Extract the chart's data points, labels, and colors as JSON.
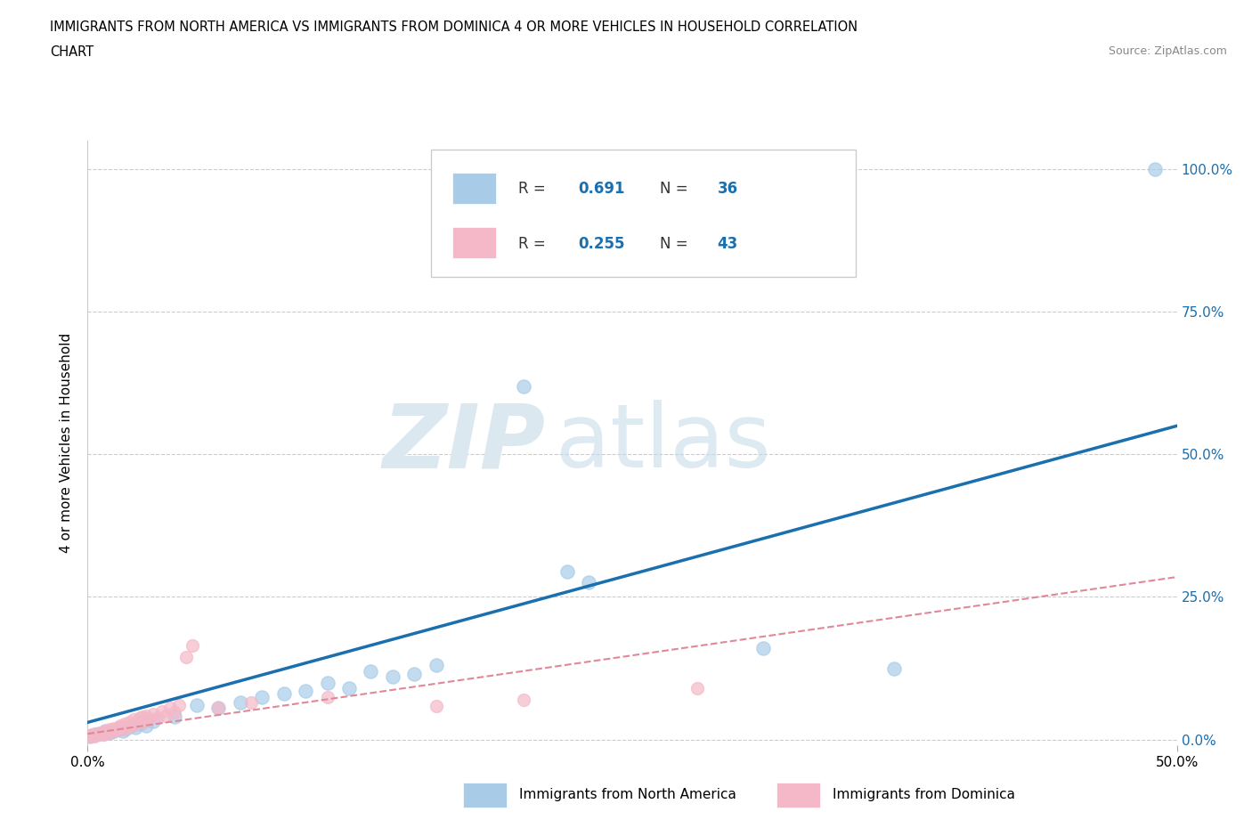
{
  "title_line1": "IMMIGRANTS FROM NORTH AMERICA VS IMMIGRANTS FROM DOMINICA 4 OR MORE VEHICLES IN HOUSEHOLD CORRELATION",
  "title_line2": "CHART",
  "source": "Source: ZipAtlas.com",
  "ylabel": "4 or more Vehicles in Household",
  "xlim": [
    0.0,
    0.5
  ],
  "ylim": [
    -0.01,
    1.05
  ],
  "yticks": [
    0.0,
    0.25,
    0.5,
    0.75,
    1.0
  ],
  "ytick_labels": [
    "0.0%",
    "25.0%",
    "50.0%",
    "75.0%",
    "100.0%"
  ],
  "xticks": [
    0.0,
    0.5
  ],
  "xtick_labels": [
    "0.0%",
    "50.0%"
  ],
  "watermark_zip": "ZIP",
  "watermark_atlas": "atlas",
  "blue_R": 0.691,
  "blue_N": 36,
  "pink_R": 0.255,
  "pink_N": 43,
  "blue_color": "#a8cce8",
  "pink_color": "#f4b8c8",
  "blue_line_color": "#1a6faf",
  "pink_line_color": "#e08898",
  "legend_text_color": "#1a6faf",
  "blue_scatter": [
    [
      0.001,
      0.005
    ],
    [
      0.003,
      0.008
    ],
    [
      0.005,
      0.01
    ],
    [
      0.007,
      0.01
    ],
    [
      0.008,
      0.015
    ],
    [
      0.01,
      0.012
    ],
    [
      0.012,
      0.015
    ],
    [
      0.014,
      0.018
    ],
    [
      0.015,
      0.02
    ],
    [
      0.016,
      0.015
    ],
    [
      0.018,
      0.02
    ],
    [
      0.02,
      0.025
    ],
    [
      0.022,
      0.022
    ],
    [
      0.024,
      0.028
    ],
    [
      0.025,
      0.03
    ],
    [
      0.027,
      0.025
    ],
    [
      0.03,
      0.032
    ],
    [
      0.04,
      0.04
    ],
    [
      0.05,
      0.06
    ],
    [
      0.06,
      0.055
    ],
    [
      0.07,
      0.065
    ],
    [
      0.08,
      0.075
    ],
    [
      0.09,
      0.08
    ],
    [
      0.1,
      0.085
    ],
    [
      0.11,
      0.1
    ],
    [
      0.12,
      0.09
    ],
    [
      0.13,
      0.12
    ],
    [
      0.14,
      0.11
    ],
    [
      0.15,
      0.115
    ],
    [
      0.16,
      0.13
    ],
    [
      0.2,
      0.62
    ],
    [
      0.22,
      0.295
    ],
    [
      0.23,
      0.275
    ],
    [
      0.31,
      0.16
    ],
    [
      0.37,
      0.125
    ],
    [
      0.49,
      1.0
    ]
  ],
  "pink_scatter": [
    [
      0.001,
      0.005
    ],
    [
      0.002,
      0.008
    ],
    [
      0.003,
      0.006
    ],
    [
      0.004,
      0.01
    ],
    [
      0.005,
      0.008
    ],
    [
      0.006,
      0.012
    ],
    [
      0.007,
      0.009
    ],
    [
      0.008,
      0.015
    ],
    [
      0.009,
      0.011
    ],
    [
      0.01,
      0.018
    ],
    [
      0.011,
      0.014
    ],
    [
      0.012,
      0.02
    ],
    [
      0.013,
      0.016
    ],
    [
      0.014,
      0.022
    ],
    [
      0.015,
      0.025
    ],
    [
      0.016,
      0.018
    ],
    [
      0.017,
      0.028
    ],
    [
      0.018,
      0.022
    ],
    [
      0.019,
      0.03
    ],
    [
      0.02,
      0.025
    ],
    [
      0.021,
      0.035
    ],
    [
      0.022,
      0.028
    ],
    [
      0.023,
      0.032
    ],
    [
      0.024,
      0.038
    ],
    [
      0.025,
      0.04
    ],
    [
      0.026,
      0.03
    ],
    [
      0.027,
      0.042
    ],
    [
      0.028,
      0.035
    ],
    [
      0.03,
      0.045
    ],
    [
      0.032,
      0.038
    ],
    [
      0.034,
      0.05
    ],
    [
      0.036,
      0.042
    ],
    [
      0.038,
      0.055
    ],
    [
      0.04,
      0.048
    ],
    [
      0.042,
      0.06
    ],
    [
      0.045,
      0.145
    ],
    [
      0.048,
      0.165
    ],
    [
      0.06,
      0.055
    ],
    [
      0.075,
      0.065
    ],
    [
      0.11,
      0.075
    ],
    [
      0.16,
      0.058
    ],
    [
      0.2,
      0.07
    ],
    [
      0.28,
      0.09
    ]
  ],
  "blue_trend": [
    0.0,
    0.03,
    0.5,
    0.55
  ],
  "pink_trend": [
    0.0,
    0.01,
    0.5,
    0.285
  ]
}
